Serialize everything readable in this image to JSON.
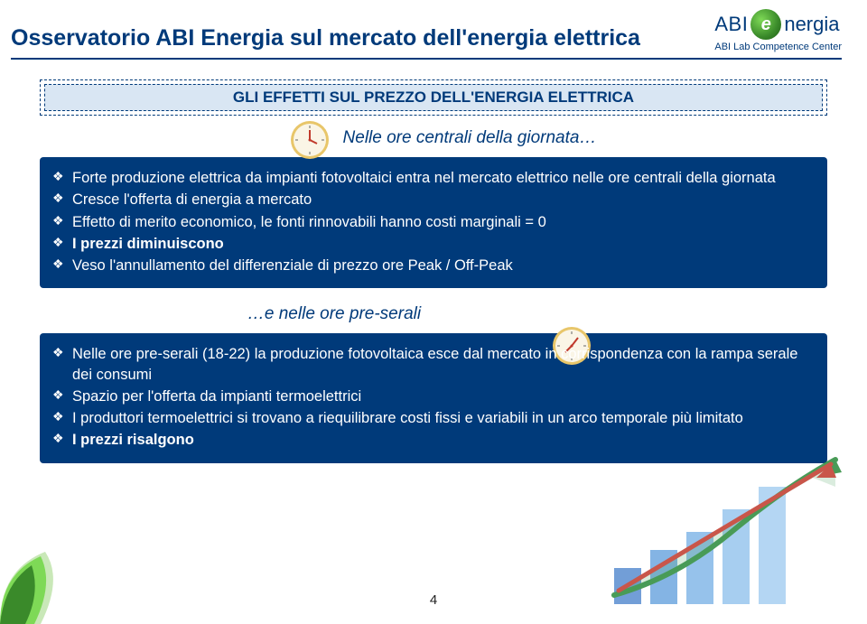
{
  "header": {
    "title": "Osservatorio ABI Energia sul mercato dell'energia elettrica",
    "logo_main": "ABI",
    "logo_green": "e",
    "logo_rest": "nergia",
    "logo_sub": "ABI Lab Competence Center"
  },
  "banner": "GLI EFFETTI SUL PREZZO DELL'ENERGIA ELETTRICA",
  "intro1": "Nelle ore centrali della giornata…",
  "box1": {
    "items": [
      "Forte produzione elettrica da impianti fotovoltaici entra nel mercato elettrico nelle ore centrali della giornata",
      "Cresce l'offerta di energia a mercato",
      "Effetto di merito economico, le fonti rinnovabili hanno costi marginali = 0",
      "I prezzi diminuiscono",
      "Veso l'annullamento del differenziale di prezzo ore Peak / Off-Peak"
    ],
    "bold_indices": [
      3
    ]
  },
  "intro2": "…e nelle ore pre-serali",
  "box2": {
    "items": [
      "Nelle ore pre-serali (18-22) la produzione fotovoltaica esce dal mercato in corrispondenza con la rampa serale dei consumi",
      "Spazio per l'offerta da impianti termoelettrici",
      "I produttori termoelettrici si trovano a riequilibrare costi fissi e variabili in un arco temporale più limitato",
      "I prezzi risalgono"
    ],
    "bold_indices": [
      3
    ]
  },
  "page_num": "4",
  "clock": {
    "face_fill": "#faf5e6",
    "rim_fill": "#e8c66a",
    "hand_color": "#c0392b",
    "tick_color": "#666666"
  },
  "chart": {
    "bar_colors": [
      "#5a8ed1",
      "#6fa8e0",
      "#84b8e8",
      "#98c6ee",
      "#a8d0f2"
    ],
    "line_color": "#2a8a3a",
    "arrow_color": "#c0392b",
    "bg": "#ffffff"
  },
  "leaf": {
    "outer": "#7ed956",
    "inner": "#3a8a2a",
    "shadow": "#c9e8b8"
  },
  "colors": {
    "primary": "#003a7a",
    "banner_bg": "#d9e6f3"
  }
}
